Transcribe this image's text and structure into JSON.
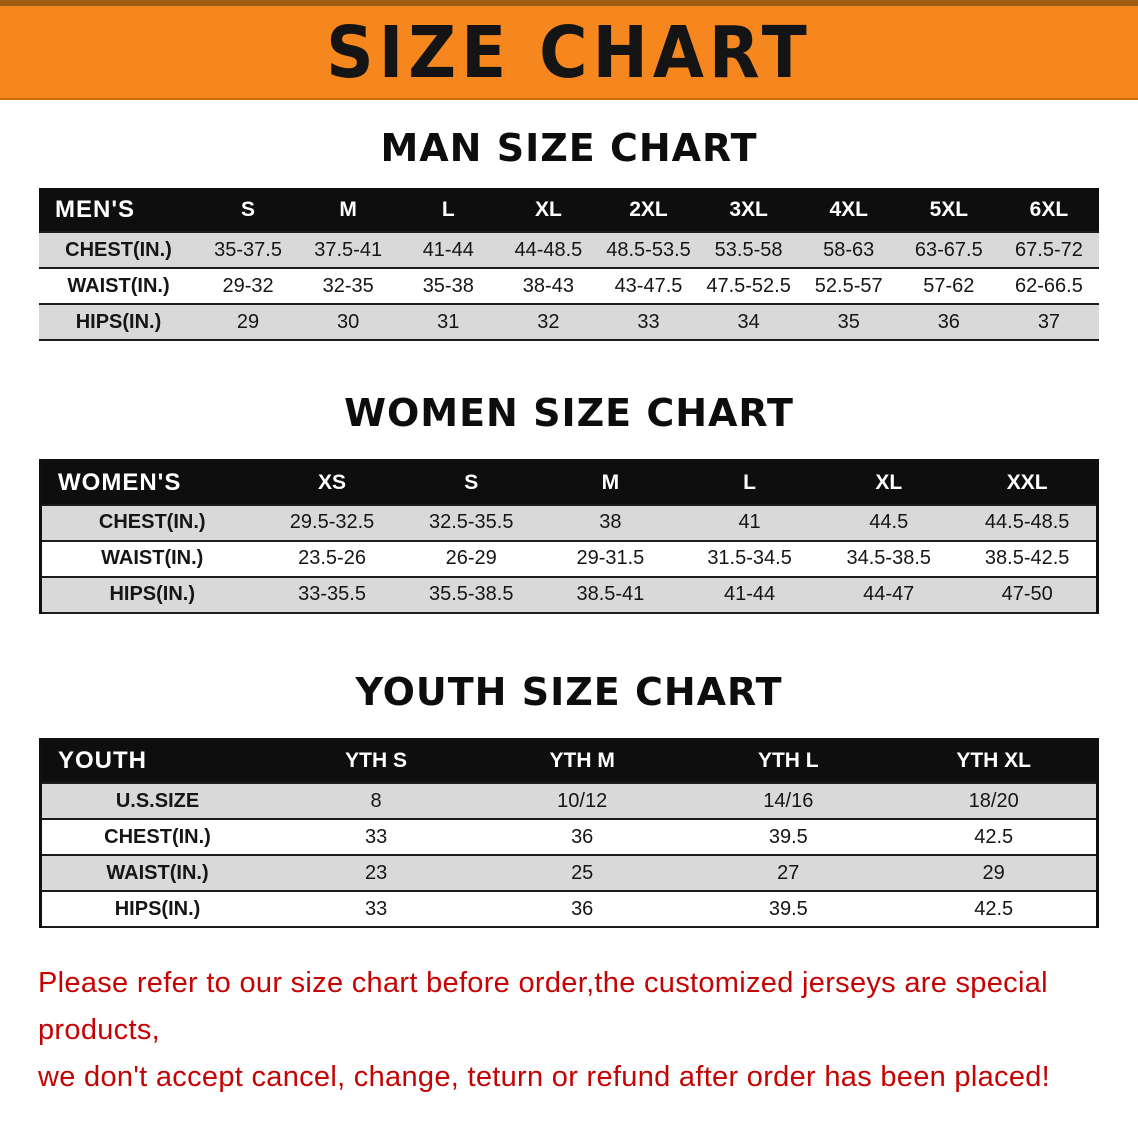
{
  "banner": {
    "title": "SIZE CHART",
    "bg_color": "#f6871f",
    "text_color": "#141414"
  },
  "sections": [
    {
      "heading": "MAN SIZE CHART",
      "table": {
        "header": [
          "MEN'S",
          "S",
          "M",
          "L",
          "XL",
          "2XL",
          "3XL",
          "4XL",
          "5XL",
          "6XL"
        ],
        "rows": [
          [
            "CHEST(IN.)",
            "35-37.5",
            "37.5-41",
            "41-44",
            "44-48.5",
            "48.5-53.5",
            "53.5-58",
            "58-63",
            "63-67.5",
            "67.5-72"
          ],
          [
            "WAIST(IN.)",
            "29-32",
            "32-35",
            "35-38",
            "38-43",
            "43-47.5",
            "47.5-52.5",
            "52.5-57",
            "57-62",
            "62-66.5"
          ],
          [
            "HIPS(IN.)",
            "29",
            "30",
            "31",
            "32",
            "33",
            "34",
            "35",
            "36",
            "37"
          ]
        ]
      }
    },
    {
      "heading": "WOMEN SIZE CHART",
      "table": {
        "header": [
          "WOMEN'S",
          "XS",
          "S",
          "M",
          "L",
          "XL",
          "XXL"
        ],
        "rows": [
          [
            "CHEST(IN.)",
            "29.5-32.5",
            "32.5-35.5",
            "38",
            "41",
            "44.5",
            "44.5-48.5"
          ],
          [
            "WAIST(IN.)",
            "23.5-26",
            "26-29",
            "29-31.5",
            "31.5-34.5",
            "34.5-38.5",
            "38.5-42.5"
          ],
          [
            "HIPS(IN.)",
            "33-35.5",
            "35.5-38.5",
            "38.5-41",
            "41-44",
            "44-47",
            "47-50"
          ]
        ]
      }
    },
    {
      "heading": "YOUTH SIZE CHART",
      "table": {
        "header": [
          "YOUTH",
          "YTH S",
          "YTH M",
          "YTH L",
          "YTH XL"
        ],
        "rows": [
          [
            "U.S.SIZE",
            "8",
            "10/12",
            "14/16",
            "18/20"
          ],
          [
            "CHEST(IN.)",
            "33",
            "36",
            "39.5",
            "42.5"
          ],
          [
            "WAIST(IN.)",
            "23",
            "25",
            "27",
            "29"
          ],
          [
            "HIPS(IN.)",
            "33",
            "36",
            "39.5",
            "42.5"
          ]
        ]
      }
    }
  ],
  "footer": {
    "line1": "Please refer to our size chart before order,the customized jerseys are special products,",
    "line2": "we don't accept cancel, change, teturn or refund after order has been placed!",
    "text_color": "#c40404"
  }
}
